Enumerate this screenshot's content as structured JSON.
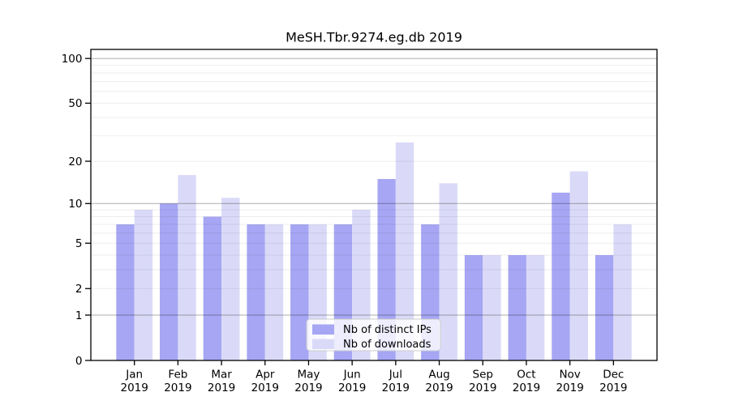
{
  "chart_data": {
    "type": "bar",
    "title": "MeSH.Tbr.9274.eg.db 2019",
    "year_label": "2019",
    "categories": [
      "Jan",
      "Feb",
      "Mar",
      "Apr",
      "May",
      "Jun",
      "Jul",
      "Aug",
      "Sep",
      "Oct",
      "Nov",
      "Dec"
    ],
    "series": [
      {
        "name": "Nb of distinct IPs",
        "color": "#a6a6f4",
        "values": [
          7,
          10,
          8,
          7,
          7,
          7,
          15,
          7,
          4,
          4,
          12,
          4
        ]
      },
      {
        "name": "Nb of downloads",
        "color": "#dadaf8",
        "values": [
          9,
          16,
          11,
          7,
          7,
          9,
          27,
          14,
          4,
          4,
          17,
          7
        ]
      }
    ],
    "y_axis": {
      "scale": "log10(1+x)",
      "labeled_ticks": [
        0,
        1,
        2,
        5,
        10,
        20,
        50,
        100
      ],
      "major_gridlines": [
        1,
        10,
        100
      ],
      "minor_gridlines": [
        2,
        3,
        4,
        5,
        6,
        7,
        8,
        9,
        20,
        30,
        40,
        50,
        60,
        70,
        80,
        90
      ],
      "ylim": [
        0,
        114
      ]
    },
    "grid": true,
    "legend": {
      "position": "bottom-center",
      "entries": [
        "Nb of distinct IPs",
        "Nb of downloads"
      ]
    }
  }
}
